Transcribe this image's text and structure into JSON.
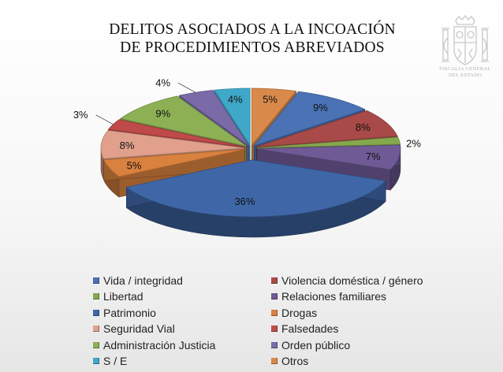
{
  "title_line1": "DELITOS ASOCIADOS A LA INCOACIÓN",
  "title_line2": "DE PROCEDIMIENTOS ABREVIADOS",
  "logo": {
    "line1": "FISCALIA GENERAL",
    "line2": "DEL ESTADO",
    "icon": "coat-of-arms-icon"
  },
  "chart_data": {
    "type": "pie",
    "style": "3d-exploded",
    "legend_position": "bottom",
    "slices": [
      {
        "label": "Otros",
        "value": 5,
        "display": "5%",
        "color": "#d98a4a"
      },
      {
        "label": "Vida / integridad",
        "value": 9,
        "display": "9%",
        "color": "#4a72b4"
      },
      {
        "label": "Violencia doméstica / género",
        "value": 8,
        "display": "8%",
        "color": "#a84a48"
      },
      {
        "label": "Libertad",
        "value": 2,
        "display": "2%",
        "color": "#86a84d"
      },
      {
        "label": "Relaciones familiares",
        "value": 7,
        "display": "7%",
        "color": "#6f5a96"
      },
      {
        "label": "Patrimonio",
        "value": 36,
        "display": "36%",
        "color": "#3f67a8"
      },
      {
        "label": "Drogas",
        "value": 5,
        "display": "5%",
        "color": "#d9813e"
      },
      {
        "label": "Seguridad Vial",
        "value": 8,
        "display": "8%",
        "color": "#e0a08c"
      },
      {
        "label": "Falsedades",
        "value": 3,
        "display": "3%",
        "color": "#bf4a4a"
      },
      {
        "label": "Administración Justicia",
        "value": 9,
        "display": "9%",
        "color": "#8db055"
      },
      {
        "label": "Orden público",
        "value": 4,
        "display": "4%",
        "color": "#7a6aa8"
      },
      {
        "label": "S / E",
        "value": 4,
        "display": "4%",
        "color": "#3fa8c8"
      }
    ],
    "legend": [
      "Vida / integridad",
      "Violencia doméstica / género",
      "Libertad",
      "Relaciones familiares",
      "Patrimonio",
      "Drogas",
      "Seguridad Vial",
      "Falsedades",
      "Administración Justicia",
      "Orden público",
      "S / E",
      "Otros"
    ]
  }
}
